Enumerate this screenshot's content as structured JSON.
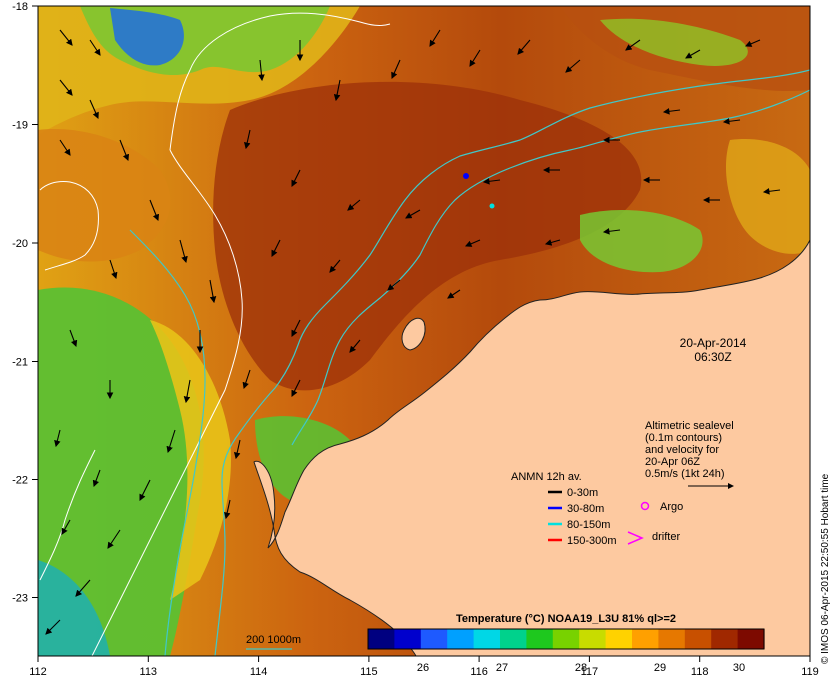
{
  "map": {
    "axes": {
      "x_ticks": [
        "112",
        "113",
        "114",
        "115",
        "116",
        "117",
        "118",
        "119"
      ],
      "y_ticks": [
        "-18",
        "-19",
        "-20",
        "-21",
        "-22",
        "-23"
      ]
    },
    "date": "20-Apr-2014",
    "time": "06:30Z",
    "sealevel_note": [
      "Altimetric sealevel",
      "(0.1m contours)",
      "and velocity for",
      "20-Apr 06Z",
      "0.5m/s (1kt 24h)"
    ],
    "anmn_title": "ANMN 12h av.",
    "anmn_legend": [
      {
        "label": "0-30m",
        "color": "#000000"
      },
      {
        "label": "30-80m",
        "color": "#0000ff"
      },
      {
        "label": "80-150m",
        "color": "#00e0e0"
      },
      {
        "label": "150-300m",
        "color": "#ff0000"
      }
    ],
    "argo_label": "Argo",
    "argo_color": "#ff00ff",
    "drifter_label": "drifter",
    "drifter_color": "#ff00ff",
    "isobath_label": "200  1000m",
    "isobath_color": "#40c0c0",
    "colorbar": {
      "title": "Temperature (°C) NOAA19_L3U 81% ql>=2",
      "ticks": [
        "26",
        "27",
        "28",
        "29",
        "30"
      ],
      "colors": [
        "#000080",
        "#0000cd",
        "#1e5aff",
        "#00a0ff",
        "#00d7e6",
        "#00d28c",
        "#1ec81e",
        "#78d200",
        "#c8dc00",
        "#ffd200",
        "#ffa000",
        "#e67800",
        "#c85000",
        "#a02800",
        "#7d0a00"
      ]
    },
    "credit": "© IMOS 06-Apr-2015 22:50:55 Hobart time",
    "colors": {
      "land": "#fdc9a0",
      "warm": "#a83a08",
      "mid": "#d97a10",
      "cool": "#e2b814",
      "green": "#5cc032",
      "cloud": "#2f9f7a"
    }
  }
}
